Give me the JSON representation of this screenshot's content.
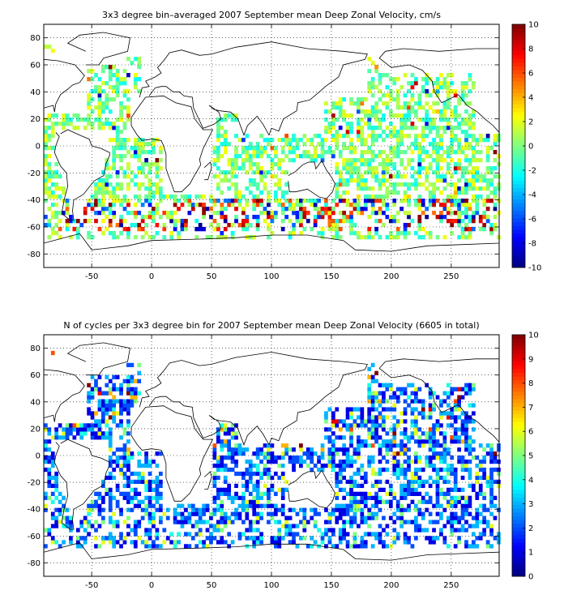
{
  "chart_data": [
    {
      "type": "heatmap",
      "title": "3x3 degree bin–averaged 2007 September mean Deep Zonal Velocity, cm/s",
      "xlabel": "",
      "ylabel": "",
      "xlim": [
        -90,
        290
      ],
      "ylim": [
        -90,
        90
      ],
      "x_ticks": [
        -50,
        0,
        50,
        100,
        150,
        200,
        250
      ],
      "y_ticks": [
        -80,
        -60,
        -40,
        -20,
        0,
        20,
        40,
        60,
        80
      ],
      "grid": true,
      "grid_style": "dotted",
      "bin_size_deg": 3,
      "colorbar": {
        "min": -10,
        "max": 10,
        "ticks": [
          -10,
          -8,
          -6,
          -4,
          -2,
          0,
          2,
          4,
          6,
          8,
          10
        ],
        "colormap": "jet"
      },
      "coverage_note": "scattered bins over ocean between ~70S and ~75N; extreme values concentrated along the Southern Ocean (~45S-60S)"
    },
    {
      "type": "heatmap",
      "title": "N of cycles per 3x3 degree bin for 2007 September mean Deep Zonal Velocity (6605 in total)",
      "xlabel": "",
      "ylabel": "",
      "xlim": [
        -90,
        290
      ],
      "ylim": [
        -90,
        90
      ],
      "x_ticks": [
        -50,
        0,
        50,
        100,
        150,
        200,
        250
      ],
      "y_ticks": [
        -80,
        -60,
        -40,
        -20,
        0,
        20,
        40,
        60,
        80
      ],
      "grid": true,
      "grid_style": "dotted",
      "bin_size_deg": 3,
      "total_cycles": 6605,
      "colorbar": {
        "min": 0,
        "max": 10,
        "ticks": [
          0,
          1,
          2,
          3,
          4,
          5,
          6,
          7,
          8,
          9,
          10
        ],
        "colormap": "jet"
      },
      "coverage_note": "most bins hold 1-3 cycles (blue/cyan); higher counts scattered in the North Pacific and North Atlantic"
    }
  ]
}
